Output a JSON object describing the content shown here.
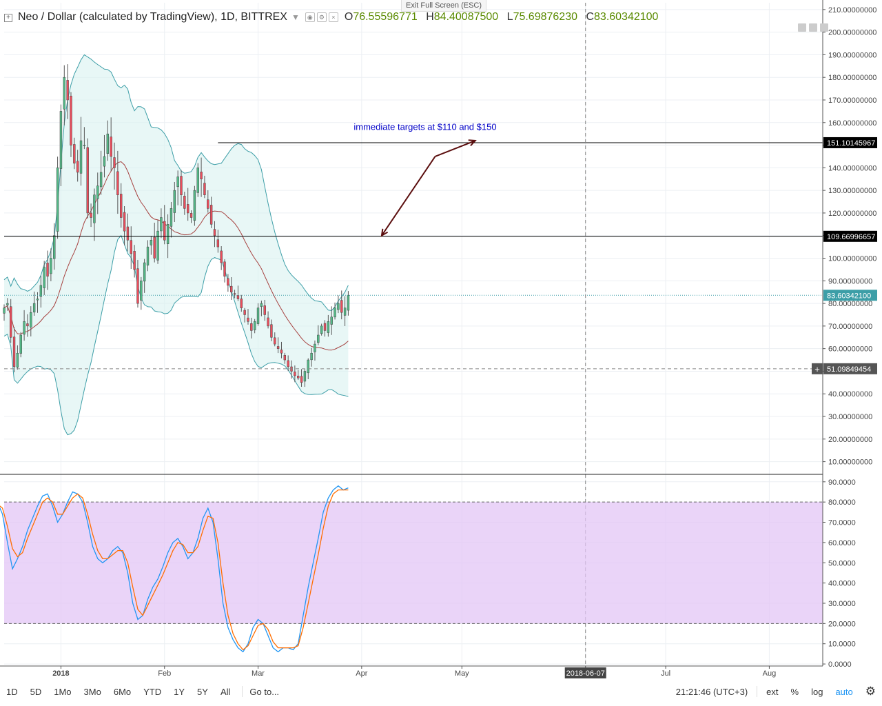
{
  "header": {
    "exit_fullscreen": "Exit Full Screen (ESC)",
    "symbol_title": "Neo / Dollar (calculated by TradingView), 1D, BITTREX",
    "open_label": "O",
    "open_value": "76.55596771",
    "high_label": "H",
    "high_value": "84.40087500",
    "low_label": "L",
    "low_value": "75.69876230",
    "close_label": "C",
    "close_value": "83.60342100"
  },
  "colors": {
    "up": "#53b987",
    "down": "#eb4d5c",
    "bb_band": "#3c9ea7",
    "bb_fill": "#d9f2f0",
    "bb_basis": "#a6413f",
    "stoch_k": "#2196f3",
    "stoch_d": "#ff6d00",
    "stoch_fill": "#e3c5f5",
    "annotation": "#0000c8",
    "arrow": "#5b0e0e"
  },
  "toolbar": {
    "timeframes": [
      "1D",
      "5D",
      "1Mo",
      "3Mo",
      "6Mo",
      "YTD",
      "1Y",
      "5Y",
      "All"
    ],
    "goto": "Go to...",
    "clock": "21:21:46 (UTC+3)",
    "ext": "ext",
    "percent": "%",
    "log": "log",
    "auto": "auto"
  },
  "chart_data": [
    {
      "type": "candlestick",
      "title": "Neo / Dollar (calculated by TradingView), 1D, BITTREX",
      "ylim": [
        5,
        213
      ],
      "y_ticks": [
        "210.00000000",
        "200.00000000",
        "190.00000000",
        "180.00000000",
        "170.00000000",
        "160.00000000",
        "150.00000000",
        "140.00000000",
        "130.00000000",
        "120.00000000",
        "110.00000000",
        "100.00000000",
        "90.00000000",
        "80.00000000",
        "70.00000000",
        "60.00000000",
        "50.00000000",
        "40.00000000",
        "30.00000000",
        "20.00000000",
        "10.00000000"
      ],
      "x_tick_labels": [
        "2018",
        "Feb",
        "Mar",
        "Apr",
        "May",
        "2018-06-07",
        "Jul",
        "Aug"
      ],
      "x_tick_dates": [
        "2018-01-01",
        "2018-02-01",
        "2018-03-01",
        "2018-04-01",
        "2018-05-01",
        "2018-06-07",
        "2018-07-01",
        "2018-08-01"
      ],
      "x_start": "2017-12-15",
      "x_end": "2018-08-17",
      "grid": true,
      "closes": [
        78,
        80,
        65,
        52,
        58,
        66,
        72,
        70,
        76,
        80,
        82,
        88,
        96,
        92,
        100,
        110,
        140,
        165,
        180,
        170,
        150,
        142,
        138,
        152,
        150,
        120,
        118,
        128,
        132,
        138,
        145,
        155,
        145,
        140,
        128,
        118,
        112,
        108,
        102,
        95,
        80,
        90,
        98,
        105,
        108,
        100,
        112,
        118,
        108,
        115,
        122,
        130,
        136,
        128,
        122,
        120,
        118,
        130,
        140,
        135,
        128,
        122,
        115,
        110,
        105,
        98,
        92,
        88,
        85,
        84,
        82,
        78,
        75,
        72,
        68,
        72,
        78,
        80,
        75,
        70,
        65,
        62,
        60,
        58,
        55,
        52,
        50,
        48,
        47,
        45,
        50,
        55,
        58,
        62,
        66,
        70,
        68,
        72,
        74,
        78,
        80,
        76,
        78,
        83.6
      ],
      "last_date": "2018-03-28",
      "price_labels": [
        {
          "value": 151.10145967,
          "text": "151.10145967"
        },
        {
          "value": 109.66996657,
          "text": "109.66996657"
        },
        {
          "value": 83.603421,
          "text": "83.60342100"
        },
        {
          "value": 51.09849454,
          "text": "51.09849454"
        }
      ],
      "horizontal_lines": [
        {
          "value": 151.10145967,
          "from_date": "2018-02-17"
        },
        {
          "value": 109.66996657,
          "from_date": "2017-12-15"
        }
      ],
      "annotation": {
        "text": "immediate targets at $110 and $150",
        "value": 158,
        "date": "2018-04-20"
      },
      "arrows": [
        {
          "from_date": "2018-04-23",
          "from_value": 145,
          "to_date": "2018-04-07",
          "to_value": 110
        },
        {
          "from_date": "2018-04-23",
          "from_value": 145,
          "to_date": "2018-05-05",
          "to_value": 152
        }
      ],
      "crosshair": {
        "date": "2018-06-07",
        "value": 51.09849454
      },
      "indicator": "Bollinger Bands (20, 2)"
    },
    {
      "type": "line",
      "indicator": "Stochastic RSI",
      "ylim": [
        -1,
        93
      ],
      "y_ticks": [
        "90.0000",
        "80.0000",
        "70.0000",
        "60.0000",
        "50.0000",
        "40.0000",
        "30.0000",
        "20.0000",
        "10.0000",
        "0.0000"
      ],
      "band": [
        20,
        80
      ],
      "series": [
        {
          "key": "k",
          "values": [
            78,
            80,
            74,
            60,
            47,
            52,
            58,
            66,
            72,
            78,
            83,
            84,
            78,
            70,
            74,
            80,
            85,
            84,
            80,
            70,
            58,
            52,
            50,
            52,
            56,
            58,
            55,
            45,
            30,
            22,
            24,
            32,
            38,
            42,
            48,
            55,
            60,
            62,
            58,
            52,
            55,
            62,
            72,
            77,
            70,
            52,
            30,
            18,
            12,
            8,
            6,
            10,
            18,
            22,
            20,
            14,
            8,
            6,
            8,
            8,
            7,
            10,
            24,
            38,
            50,
            62,
            75,
            82,
            86,
            88,
            86,
            87
          ]
        },
        {
          "key": "d",
          "values": [
            79,
            79,
            77,
            68,
            57,
            53,
            55,
            62,
            68,
            74,
            80,
            82,
            80,
            74,
            74,
            78,
            82,
            84,
            82,
            74,
            64,
            56,
            52,
            52,
            54,
            56,
            56,
            50,
            38,
            27,
            24,
            29,
            34,
            39,
            44,
            50,
            56,
            60,
            59,
            55,
            55,
            58,
            66,
            73,
            72,
            60,
            40,
            24,
            15,
            10,
            7,
            9,
            14,
            19,
            20,
            17,
            11,
            8,
            8,
            8,
            8,
            9,
            18,
            30,
            42,
            54,
            67,
            78,
            84,
            86,
            86,
            86
          ]
        }
      ]
    }
  ]
}
